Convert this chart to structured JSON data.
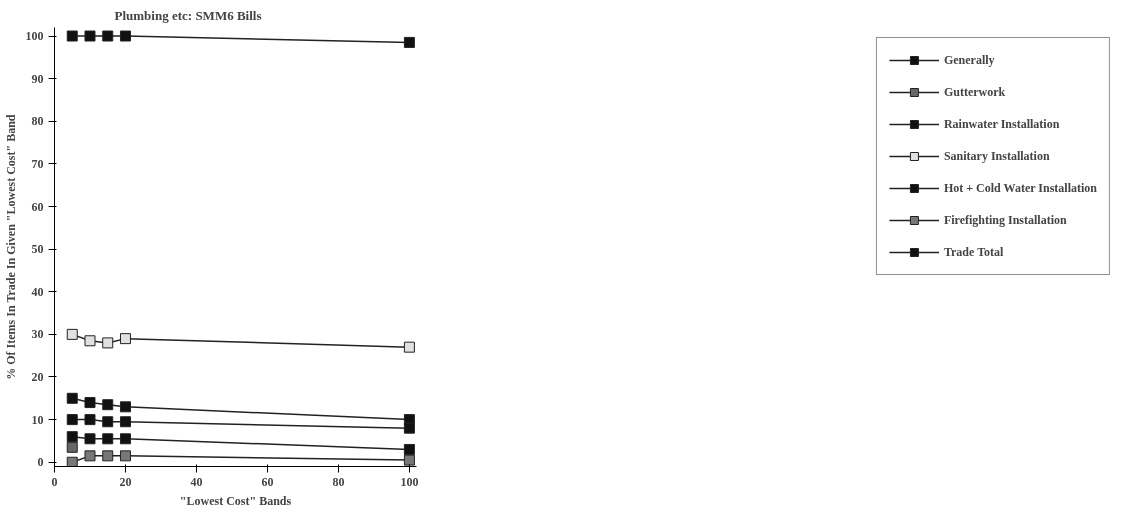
{
  "chart_data": {
    "type": "line",
    "title": "Plumbing etc: SMM6 Bills",
    "xlabel": "\"Lowest Cost\" Bands",
    "ylabel": "% Of Items In Trade In Given \"Lowest Cost\" Band",
    "x": [
      5,
      10,
      15,
      20,
      100
    ],
    "series": [
      {
        "name": "Generally",
        "color": "#111111",
        "values": [
          100,
          100,
          100,
          100,
          98.5
        ]
      },
      {
        "name": "Gutterwork",
        "color": "#666666",
        "values": [
          3.5,
          null,
          null,
          null,
          null
        ]
      },
      {
        "name": "Rainwater Installation",
        "color": "#111111",
        "values": [
          15,
          14,
          13.5,
          13,
          10
        ]
      },
      {
        "name": "Sanitary Installation",
        "color": "#e0e0e0",
        "values": [
          30,
          28.5,
          28,
          29,
          27
        ]
      },
      {
        "name": "Hot + Cold Water Installation",
        "color": "#111111",
        "values": [
          10,
          10,
          9.5,
          9.5,
          8
        ]
      },
      {
        "name": "Firefighting Installation",
        "color": "#777777",
        "values": [
          0,
          1.5,
          1.5,
          1.5,
          0.5
        ]
      },
      {
        "name": "Trade Total",
        "color": "#111111",
        "values": [
          6,
          5.5,
          5.5,
          5.5,
          3
        ]
      }
    ],
    "xlim": [
      0,
      102
    ],
    "ylim": [
      -1,
      102
    ],
    "xticks": [
      0,
      20,
      40,
      60,
      80,
      100
    ],
    "yticks": [
      0,
      10,
      20,
      30,
      40,
      50,
      60,
      70,
      80,
      90,
      100
    ],
    "grid": false,
    "legend": "right",
    "marker": "square",
    "line_style": "solid"
  }
}
